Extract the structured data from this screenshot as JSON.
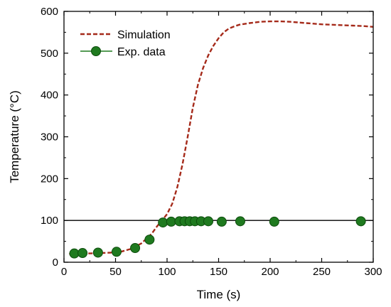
{
  "chart_data": {
    "type": "line",
    "title": "",
    "xlabel": "Time (s)",
    "ylabel": "Temperature (°C)",
    "xlim": [
      0,
      300
    ],
    "ylim": [
      0,
      600
    ],
    "x_ticks": [
      0,
      50,
      100,
      150,
      200,
      250,
      300
    ],
    "y_ticks": [
      0,
      100,
      200,
      300,
      400,
      500,
      600
    ],
    "grid": false,
    "legend_position": "top-left",
    "reference_line": {
      "y": 100,
      "color": "#000000"
    },
    "series": [
      {
        "name": "Simulation",
        "style": "dashed-line",
        "color": "#a52a1a",
        "x": [
          5,
          15,
          25,
          35,
          45,
          55,
          65,
          75,
          85,
          90,
          95,
          100,
          105,
          110,
          115,
          120,
          125,
          130,
          135,
          140,
          145,
          150,
          155,
          160,
          165,
          170,
          180,
          190,
          200,
          210,
          220,
          230,
          240,
          250,
          260,
          270,
          280,
          290,
          300
        ],
        "y": [
          20,
          21,
          21,
          22,
          23,
          25,
          32,
          45,
          68,
          85,
          100,
          115,
          140,
          180,
          235,
          300,
          370,
          425,
          465,
          495,
          518,
          536,
          550,
          559,
          564,
          568,
          572,
          575,
          576,
          576,
          575,
          573,
          571,
          569,
          568,
          567,
          566,
          565,
          563
        ]
      },
      {
        "name": "Exp. data",
        "style": "markers",
        "color": "#1f7a1f",
        "x": [
          10,
          18,
          33,
          51,
          69,
          83,
          96,
          104,
          112,
          117,
          122,
          127,
          133,
          140,
          153,
          171,
          204,
          288
        ],
        "y": [
          21,
          22,
          23,
          25,
          34,
          54,
          95,
          97,
          98,
          98,
          98,
          98,
          98,
          98,
          97,
          98,
          97,
          98
        ]
      }
    ]
  }
}
